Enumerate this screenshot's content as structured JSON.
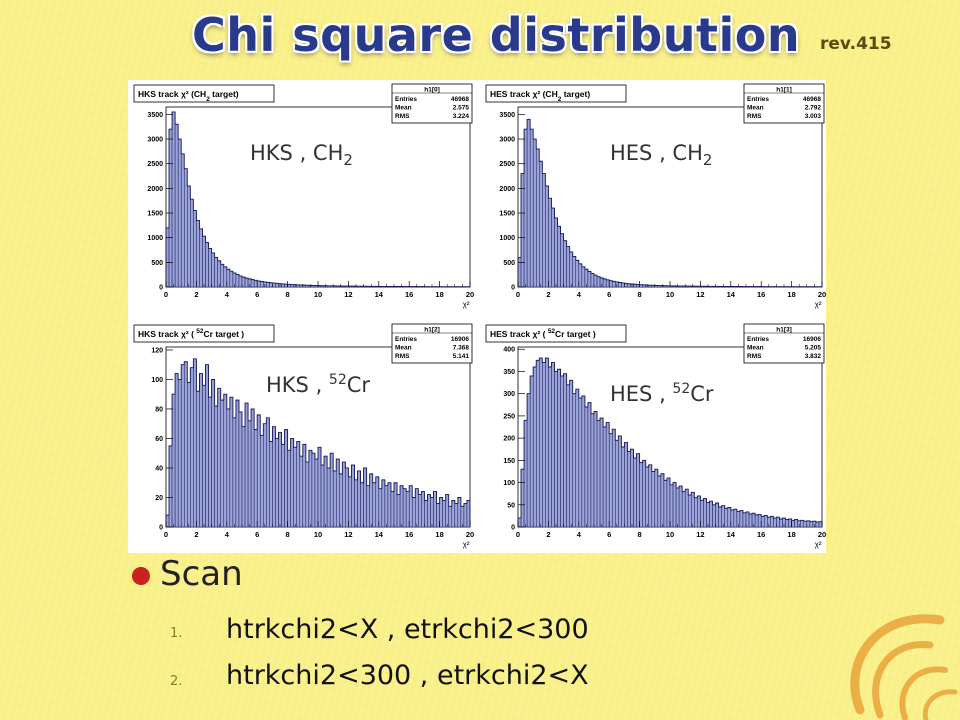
{
  "slide": {
    "title": "Chi square distribution",
    "revision": "rev.415",
    "bullet_heading": "Scan",
    "items": [
      {
        "num": "1.",
        "text": "htrkchi2<X , etrkchi2<300"
      },
      {
        "num": "2.",
        "text": "htrkchi2<300 , etrkchi2<X"
      }
    ]
  },
  "colors": {
    "background": "#faf089",
    "title": "#2a3a8a",
    "bullet": "#c8231d",
    "hist_fill": "#9aa4d8",
    "hist_line": "#1a1a5a"
  },
  "chart_data": [
    {
      "type": "bar",
      "title_prefix": "HKS track χ² (CH",
      "title_sub": "2",
      "title_suffix": " target)",
      "overlay_main": "HKS , CH",
      "overlay_sub": "2",
      "overlay_sup": "",
      "x_axis_label": "χ²",
      "xlim": [
        0,
        20
      ],
      "ylim": [
        0,
        3650
      ],
      "x_ticks": [
        "0",
        "2",
        "4",
        "6",
        "8",
        "10",
        "12",
        "14",
        "16",
        "18",
        "20"
      ],
      "y_ticks": [
        "0",
        "500",
        "1000",
        "1500",
        "2000",
        "2500",
        "3000",
        "3500"
      ],
      "y_tick_values": [
        0,
        500,
        1000,
        1500,
        2000,
        2500,
        3000,
        3500
      ],
      "stats": {
        "name": "h1[0]",
        "rows": [
          [
            "Entries",
            "46968"
          ],
          [
            "Mean",
            "2.575"
          ],
          [
            "RMS",
            "3.224"
          ]
        ]
      },
      "bin_width": 0.2,
      "values": [
        1200,
        3200,
        3550,
        3300,
        3000,
        2700,
        2400,
        2050,
        1780,
        1550,
        1350,
        1180,
        1030,
        900,
        780,
        690,
        600,
        530,
        460,
        410,
        360,
        320,
        285,
        255,
        225,
        200,
        180,
        165,
        150,
        135,
        122,
        112,
        102,
        94,
        86,
        80,
        74,
        68,
        63,
        58,
        54,
        50,
        47,
        44,
        41,
        38,
        36,
        34,
        32,
        30,
        28,
        27,
        26,
        25,
        24,
        23,
        22,
        21,
        20,
        19,
        18,
        18,
        17,
        16,
        15,
        15,
        14,
        14,
        13,
        13,
        12,
        12,
        11,
        11,
        11,
        10,
        10,
        10,
        9,
        9,
        9,
        8,
        8,
        8,
        8,
        7,
        7,
        7,
        7,
        6,
        6,
        6,
        6,
        6,
        5,
        5,
        5,
        5,
        5,
        5
      ]
    },
    {
      "type": "bar",
      "title_prefix": "HES track χ² (CH",
      "title_sub": "2",
      "title_suffix": " target)",
      "overlay_main": "HES , CH",
      "overlay_sub": "2",
      "overlay_sup": "",
      "x_axis_label": "χ²",
      "xlim": [
        0,
        20
      ],
      "ylim": [
        0,
        3650
      ],
      "x_ticks": [
        "0",
        "2",
        "4",
        "6",
        "8",
        "10",
        "12",
        "14",
        "16",
        "18",
        "20"
      ],
      "y_ticks": [
        "0",
        "500",
        "1000",
        "1500",
        "2000",
        "2500",
        "3000",
        "3500"
      ],
      "y_tick_values": [
        0,
        500,
        1000,
        1500,
        2000,
        2500,
        3000,
        3500
      ],
      "stats": {
        "name": "h1[1]",
        "rows": [
          [
            "Entries",
            "46968"
          ],
          [
            "Mean",
            "2.792"
          ],
          [
            "RMS",
            "3.003"
          ]
        ]
      },
      "bin_width": 0.2,
      "values": [
        600,
        2300,
        3200,
        3400,
        3200,
        3000,
        2800,
        2550,
        2300,
        2050,
        1800,
        1600,
        1400,
        1230,
        1080,
        940,
        820,
        710,
        620,
        540,
        470,
        410,
        360,
        315,
        275,
        240,
        210,
        185,
        165,
        145,
        128,
        114,
        102,
        91,
        82,
        74,
        67,
        61,
        56,
        51,
        47,
        43,
        40,
        37,
        34,
        32,
        30,
        28,
        26,
        25,
        24,
        23,
        22,
        21,
        20,
        19,
        18,
        18,
        17,
        16,
        15,
        15,
        14,
        14,
        13,
        13,
        12,
        12,
        11,
        11,
        11,
        10,
        10,
        10,
        9,
        9,
        9,
        8,
        8,
        8,
        8,
        7,
        7,
        7,
        7,
        6,
        6,
        6,
        6,
        6,
        5,
        5,
        5,
        5,
        5,
        5,
        5,
        5,
        5,
        5
      ]
    },
    {
      "type": "bar",
      "title_prefix": "HKS track χ² ( ",
      "title_sup": "52",
      "title_suffix": "Cr target )",
      "overlay_main": "HKS , ",
      "overlay_sub": "",
      "overlay_sup": "52",
      "overlay_tail": "Cr",
      "x_axis_label": "χ²",
      "xlim": [
        0,
        20
      ],
      "ylim": [
        0,
        122
      ],
      "x_ticks": [
        "0",
        "2",
        "4",
        "6",
        "8",
        "10",
        "12",
        "14",
        "16",
        "18",
        "20"
      ],
      "y_ticks": [
        "0",
        "20",
        "40",
        "60",
        "80",
        "100",
        "120"
      ],
      "y_tick_values": [
        0,
        20,
        40,
        60,
        80,
        100,
        120
      ],
      "stats": {
        "name": "h1[2]",
        "rows": [
          [
            "Entries",
            "16906"
          ],
          [
            "Mean",
            "7.368"
          ],
          [
            "RMS",
            "5.141"
          ]
        ]
      },
      "bin_width": 0.2,
      "values": [
        8,
        55,
        90,
        104,
        100,
        110,
        112,
        98,
        108,
        114,
        92,
        104,
        96,
        110,
        88,
        100,
        82,
        94,
        86,
        90,
        80,
        88,
        74,
        86,
        78,
        68,
        84,
        72,
        80,
        66,
        76,
        62,
        70,
        74,
        58,
        68,
        60,
        64,
        56,
        66,
        52,
        60,
        54,
        58,
        48,
        56,
        44,
        52,
        50,
        46,
        54,
        42,
        48,
        40,
        50,
        38,
        46,
        36,
        44,
        40,
        34,
        42,
        32,
        38,
        30,
        40,
        28,
        36,
        30,
        34,
        26,
        32,
        28,
        30,
        24,
        30,
        22,
        28,
        26,
        24,
        28,
        20,
        26,
        22,
        24,
        18,
        22,
        20,
        24,
        16,
        20,
        18,
        22,
        14,
        18,
        16,
        20,
        14,
        16,
        18
      ]
    },
    {
      "type": "bar",
      "title_prefix": "HES track χ² ( ",
      "title_sup": "52",
      "title_suffix": "Cr target )",
      "overlay_main": "HES , ",
      "overlay_sub": "",
      "overlay_sup": "52",
      "overlay_tail": "Cr",
      "x_axis_label": "χ²",
      "xlim": [
        0,
        20
      ],
      "ylim": [
        0,
        405
      ],
      "x_ticks": [
        "0",
        "2",
        "4",
        "6",
        "8",
        "10",
        "12",
        "14",
        "16",
        "18",
        "20"
      ],
      "y_ticks": [
        "0",
        "50",
        "100",
        "150",
        "200",
        "250",
        "300",
        "350",
        "400"
      ],
      "y_tick_values": [
        0,
        50,
        100,
        150,
        200,
        250,
        300,
        350,
        400
      ],
      "stats": {
        "name": "h1[3]",
        "rows": [
          [
            "Entries",
            "16906"
          ],
          [
            "Mean",
            "5.205"
          ],
          [
            "RMS",
            "3.832"
          ]
        ]
      },
      "bin_width": 0.2,
      "values": [
        20,
        130,
        240,
        300,
        340,
        360,
        375,
        380,
        370,
        380,
        360,
        370,
        350,
        355,
        340,
        345,
        320,
        330,
        300,
        310,
        290,
        295,
        270,
        280,
        255,
        260,
        240,
        245,
        225,
        235,
        210,
        220,
        195,
        205,
        180,
        190,
        170,
        175,
        155,
        165,
        145,
        150,
        135,
        140,
        125,
        130,
        115,
        120,
        105,
        110,
        95,
        100,
        88,
        92,
        80,
        85,
        72,
        78,
        66,
        70,
        60,
        64,
        55,
        58,
        50,
        54,
        45,
        48,
        42,
        44,
        38,
        40,
        35,
        37,
        32,
        34,
        29,
        31,
        27,
        28,
        24,
        26,
        22,
        24,
        20,
        22,
        18,
        20,
        17,
        18,
        15,
        17,
        14,
        15,
        13,
        14,
        12,
        13,
        11,
        12
      ]
    }
  ]
}
